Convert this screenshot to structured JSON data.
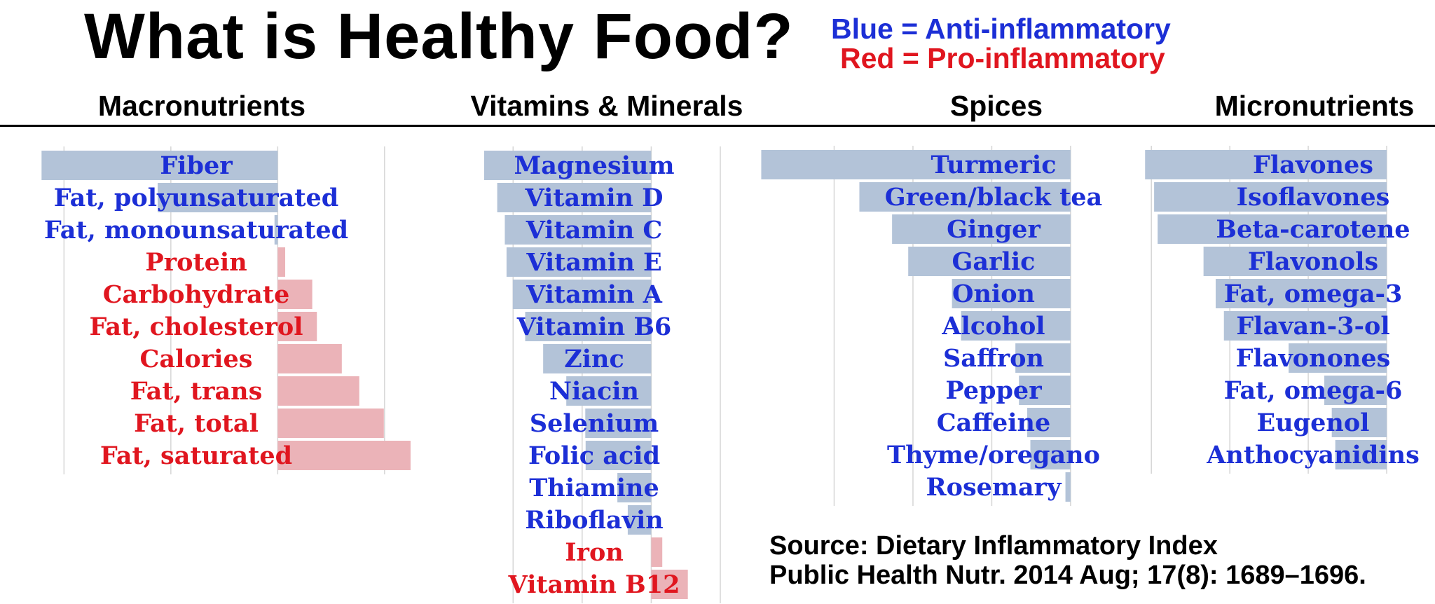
{
  "title": "What is Healthy Food?",
  "legend": {
    "blue_text": "Blue = Anti-inflammatory",
    "red_text": "Red = Pro-inflammatory",
    "blue_color": "#1c2fd6",
    "red_color": "#e0161f",
    "blue_bar_color": "#b3c3d8",
    "red_bar_color": "#ebb3b8"
  },
  "source": {
    "line1": "Source:  Dietary Inflammatory Index",
    "line2": "Public Health Nutr. 2014 Aug; 17(8): 1689–1696."
  },
  "chart_data": [
    {
      "type": "bar",
      "orientation": "horizontal",
      "title": "Macronutrients",
      "xlim": [
        -0.76,
        0.44
      ],
      "gridlines": [
        -0.6,
        -0.3,
        0,
        0.3
      ],
      "categories": [
        "Fiber",
        "Fat, polyunsaturated",
        "Fat, monounsaturated",
        "Protein",
        "Carbohydrate",
        "Fat, cholesterol",
        "Calories",
        "Fat, trans",
        "Fat, total",
        "Fat, saturated"
      ],
      "values": [
        -0.663,
        -0.337,
        -0.009,
        0.021,
        0.097,
        0.11,
        0.18,
        0.229,
        0.298,
        0.373
      ],
      "effect": [
        "anti",
        "anti",
        "anti",
        "pro",
        "pro",
        "pro",
        "pro",
        "pro",
        "pro",
        "pro"
      ]
    },
    {
      "type": "bar",
      "orientation": "horizontal",
      "title": "Vitamins & Minerals",
      "xlim": [
        -0.5,
        0.2
      ],
      "gridlines": [
        -0.4,
        -0.2,
        0,
        0.2
      ],
      "categories": [
        "Magnesium",
        "Vitamin D",
        "Vitamin C",
        "Vitamin E",
        "Vitamin A",
        "Vitamin B6",
        "Zinc",
        "Niacin",
        "Selenium",
        "Folic acid",
        "Thiamine",
        "Riboflavin",
        "Iron",
        "Vitamin B12"
      ],
      "values": [
        -0.484,
        -0.446,
        -0.424,
        -0.419,
        -0.401,
        -0.365,
        -0.313,
        -0.246,
        -0.191,
        -0.19,
        -0.098,
        -0.068,
        0.032,
        0.106
      ],
      "effect": [
        "anti",
        "anti",
        "anti",
        "anti",
        "anti",
        "anti",
        "anti",
        "anti",
        "anti",
        "anti",
        "anti",
        "anti",
        "pro",
        "pro"
      ]
    },
    {
      "type": "bar",
      "orientation": "horizontal",
      "title": "Spices",
      "xlim": [
        -0.8,
        0.05
      ],
      "gridlines": [
        -0.6,
        -0.4,
        -0.2,
        0
      ],
      "categories": [
        "Turmeric",
        "Green/black tea",
        "Ginger",
        "Garlic",
        "Onion",
        "Alcohol",
        "Saffron",
        "Pepper",
        "Caffeine",
        "Thyme/oregano",
        "Rosemary"
      ],
      "values": [
        -0.785,
        -0.536,
        -0.453,
        -0.412,
        -0.301,
        -0.278,
        -0.14,
        -0.131,
        -0.11,
        -0.102,
        -0.013
      ],
      "effect": [
        "anti",
        "anti",
        "anti",
        "anti",
        "anti",
        "anti",
        "anti",
        "anti",
        "anti",
        "anti",
        "anti"
      ]
    },
    {
      "type": "bar",
      "orientation": "horizontal",
      "title": "Micronutrients",
      "xlim": [
        -0.62,
        0.05
      ],
      "gridlines": [
        -0.6,
        -0.4,
        -0.2,
        0
      ],
      "categories": [
        "Flavones",
        "Isoflavones",
        "Beta-carotene",
        "Flavonols",
        "Fat, omega-3",
        "Flavan-3-ol",
        "Flavonones",
        "Fat, omega-6",
        "Eugenol",
        "Anthocyanidins"
      ],
      "values": [
        -0.616,
        -0.593,
        -0.584,
        -0.467,
        -0.436,
        -0.415,
        -0.25,
        -0.159,
        -0.14,
        -0.131
      ],
      "effect": [
        "anti",
        "anti",
        "anti",
        "anti",
        "anti",
        "anti",
        "anti",
        "anti",
        "anti",
        "anti"
      ]
    }
  ]
}
